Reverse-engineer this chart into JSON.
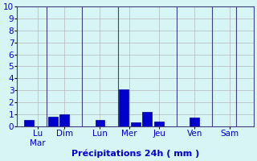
{
  "bar_data": [
    {
      "x": 0,
      "val": 0.5,
      "day": "Lu"
    },
    {
      "x": 2,
      "val": 0.8,
      "day": "Mar"
    },
    {
      "x": 3,
      "val": 1.0,
      "day": "Mar"
    },
    {
      "x": 6,
      "val": 0.5,
      "day": "Lun"
    },
    {
      "x": 8,
      "val": 3.1,
      "day": "Mer"
    },
    {
      "x": 9,
      "val": 0.3,
      "day": "Mer"
    },
    {
      "x": 10,
      "val": 1.2,
      "day": "Jeu"
    },
    {
      "x": 11,
      "val": 0.4,
      "day": "Jeu"
    },
    {
      "x": 14,
      "val": 0.7,
      "day": "Ven"
    }
  ],
  "sep_lines": [
    1.5,
    4.5,
    7.5,
    12.5,
    15.5,
    17.5
  ],
  "day_ticks": [
    0.75,
    3,
    6,
    8.5,
    11,
    14,
    17
  ],
  "day_labels": [
    "Lu\nMar",
    "Dim",
    "Lun",
    "Mer",
    "Jeu",
    "Ven",
    "Sam"
  ],
  "bar_color": "#0000cc",
  "bar_edge_color": "#000099",
  "background_color": "#d8f5f5",
  "grid_color": "#b8b8b8",
  "xlabel": "Précipitations 24h ( mm )",
  "xlabel_color": "#0000cc",
  "tick_label_color": "#0000cc",
  "axis_fontsize": 8,
  "tick_fontsize": 7.5,
  "ylim": [
    0,
    10
  ],
  "yticks": [
    0,
    1,
    2,
    3,
    4,
    5,
    6,
    7,
    8,
    9,
    10
  ],
  "xlim": [
    -1,
    19
  ],
  "bar_width": 0.8
}
